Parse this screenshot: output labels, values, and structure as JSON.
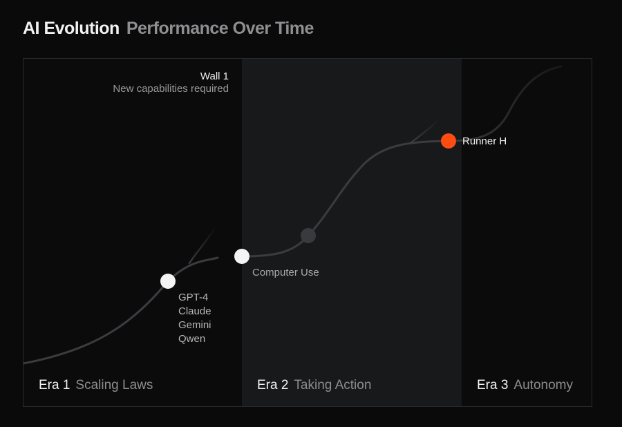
{
  "header": {
    "title": "AI Evolution",
    "subtitle": "Performance Over Time"
  },
  "wall": {
    "title": "Wall 1",
    "subtitle": "New capabilities required"
  },
  "milestones": {
    "models": [
      "GPT-4",
      "Claude",
      "Gemini",
      "Qwen"
    ],
    "computer_use": "Computer Use",
    "runner_h": "Runner H"
  },
  "eras": [
    {
      "number": "Era 1",
      "name": "Scaling Laws"
    },
    {
      "number": "Era 2",
      "name": "Taking Action"
    },
    {
      "number": "Era 3",
      "name": "Autonomy"
    }
  ],
  "colors": {
    "background": "#0a0a0b",
    "era2_band": "#18191b",
    "curve": "#3c3c40",
    "milestone_white": "#f4f4f4",
    "milestone_gray": "#3a3a3e",
    "accent": "#ff4c11"
  }
}
